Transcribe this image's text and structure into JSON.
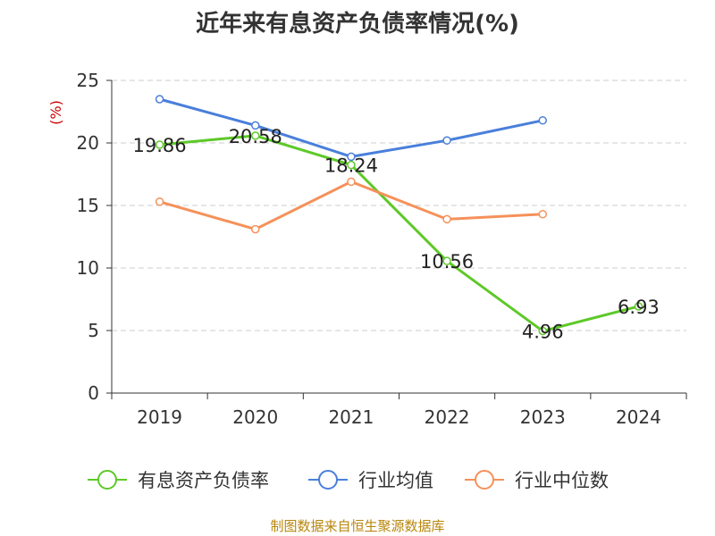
{
  "title": "近年来有息资产负债率情况(%)",
  "source": "制图数据来自恒生聚源数据库",
  "chart_data": {
    "type": "line",
    "title": "近年来有息资产负债率情况(%)",
    "ylabel": "(%)",
    "xlabel": "",
    "categories": [
      "2019",
      "2020",
      "2021",
      "2022",
      "2023",
      "2024"
    ],
    "ylim": [
      0,
      25
    ],
    "yticks": [
      0,
      5,
      10,
      15,
      20,
      25
    ],
    "grid": true,
    "legend_position": "bottom",
    "series": [
      {
        "name": "有息资产负债率",
        "color": "#5dc928",
        "values": [
          19.86,
          20.58,
          18.24,
          10.56,
          4.96,
          6.93
        ],
        "labels": [
          "19.86",
          "20.58",
          "18.24",
          "10.56",
          "4.96",
          "6.93"
        ]
      },
      {
        "name": "行业均值",
        "color": "#4a7fdb",
        "values": [
          23.5,
          21.4,
          18.9,
          20.2,
          21.8,
          null
        ]
      },
      {
        "name": "行业中位数",
        "color": "#f5915a",
        "values": [
          15.3,
          13.1,
          16.9,
          13.9,
          14.3,
          null
        ]
      }
    ]
  }
}
